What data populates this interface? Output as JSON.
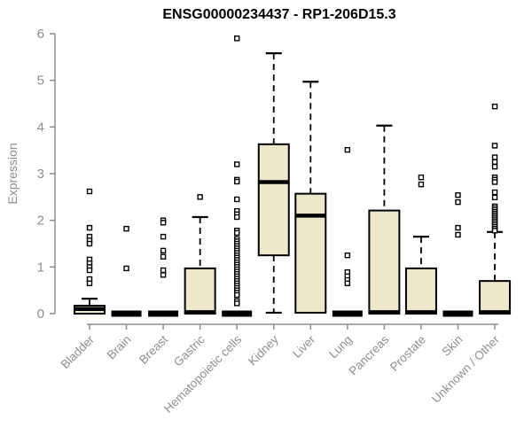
{
  "chart_data": {
    "type": "boxplot",
    "title": "ENSG00000234437 - RP1-206D15.3",
    "ylabel": "Expression",
    "xlabel": "",
    "ylim": [
      0,
      6
    ],
    "yticks": [
      0,
      1,
      2,
      3,
      4,
      5,
      6
    ],
    "grid": false,
    "legend": "none",
    "categories": [
      "Bladder",
      "Brain",
      "Breast",
      "Gastric",
      "Hematopoietic cells",
      "Kidney",
      "Liver",
      "Lung",
      "Pancreas",
      "Prostate",
      "Skin",
      "Unknown / Other"
    ],
    "series": [
      {
        "category": "Bladder",
        "q1": 0,
        "median": 0.1,
        "q3": 0.17,
        "whisker_low": 0,
        "whisker_high": 0.32,
        "outliers": [
          2.62,
          1.84,
          1.65,
          1.57,
          1.5,
          1.16,
          1.08,
          1.0,
          0.93,
          0.74,
          0.65
        ]
      },
      {
        "category": "Brain",
        "q1": 0,
        "median": 0,
        "q3": 0,
        "whisker_low": 0,
        "whisker_high": 0,
        "outliers": [
          1.82,
          0.97
        ]
      },
      {
        "category": "Breast",
        "q1": 0,
        "median": 0,
        "q3": 0,
        "whisker_low": 0,
        "whisker_high": 0,
        "outliers": [
          2.0,
          1.95,
          1.65,
          1.35,
          1.22,
          0.93,
          0.83
        ]
      },
      {
        "category": "Gastric",
        "q1": 0,
        "median": 0.03,
        "q3": 0.97,
        "whisker_low": 0,
        "whisker_high": 2.07,
        "outliers": [
          2.5
        ]
      },
      {
        "category": "Hematopoietic cells",
        "q1": 0,
        "median": 0,
        "q3": 0,
        "whisker_low": 0,
        "whisker_high": 0,
        "outliers": [
          5.9,
          3.2,
          2.87,
          2.83,
          2.45,
          2.2,
          2.13,
          2.07,
          1.78,
          1.73,
          1.6,
          1.55,
          1.5,
          1.45,
          1.4,
          1.35,
          1.3,
          1.25,
          1.2,
          1.15,
          1.1,
          1.05,
          1.0,
          0.95,
          0.9,
          0.85,
          0.8,
          0.75,
          0.7,
          0.65,
          0.6,
          0.55,
          0.5,
          0.45,
          0.4,
          0.27,
          0.22
        ]
      },
      {
        "category": "Kidney",
        "q1": 1.25,
        "median": 2.82,
        "q3": 3.63,
        "whisker_low": 0.02,
        "whisker_high": 5.58,
        "outliers": []
      },
      {
        "category": "Liver",
        "q1": 0.02,
        "median": 2.1,
        "q3": 2.57,
        "whisker_low": 0.02,
        "whisker_high": 4.97,
        "outliers": []
      },
      {
        "category": "Lung",
        "q1": 0,
        "median": 0,
        "q3": 0,
        "whisker_low": 0,
        "whisker_high": 0,
        "outliers": [
          3.51,
          1.25,
          0.89,
          0.8,
          0.72,
          0.65
        ]
      },
      {
        "category": "Pancreas",
        "q1": 0,
        "median": 0.03,
        "q3": 2.21,
        "whisker_low": 0,
        "whisker_high": 4.03,
        "outliers": []
      },
      {
        "category": "Prostate",
        "q1": 0,
        "median": 0.03,
        "q3": 0.97,
        "whisker_low": 0,
        "whisker_high": 1.65,
        "outliers": [
          2.92,
          2.77
        ]
      },
      {
        "category": "Skin",
        "q1": 0,
        "median": 0,
        "q3": 0,
        "whisker_low": 0,
        "whisker_high": 0,
        "outliers": [
          2.54,
          2.39,
          1.84,
          1.69
        ]
      },
      {
        "category": "Unknown / Other",
        "q1": 0,
        "median": 0.03,
        "q3": 0.7,
        "whisker_low": 0,
        "whisker_high": 1.75,
        "outliers": [
          4.44,
          3.6,
          3.35,
          3.25,
          3.15,
          2.92,
          2.87,
          2.82,
          2.6,
          2.49,
          2.3,
          2.26,
          2.22,
          2.18,
          2.14,
          2.1,
          2.06,
          2.02,
          1.98,
          1.94,
          1.9,
          1.86,
          1.82,
          1.78
        ]
      }
    ],
    "colors": {
      "box_fill": "#EDE8CC",
      "box_stroke": "#000000",
      "median": "#000000",
      "outlier_fill": "#FFFFFF",
      "axis": "#8F8F8F",
      "title": "#000000",
      "background": "#FFFFFF"
    }
  }
}
